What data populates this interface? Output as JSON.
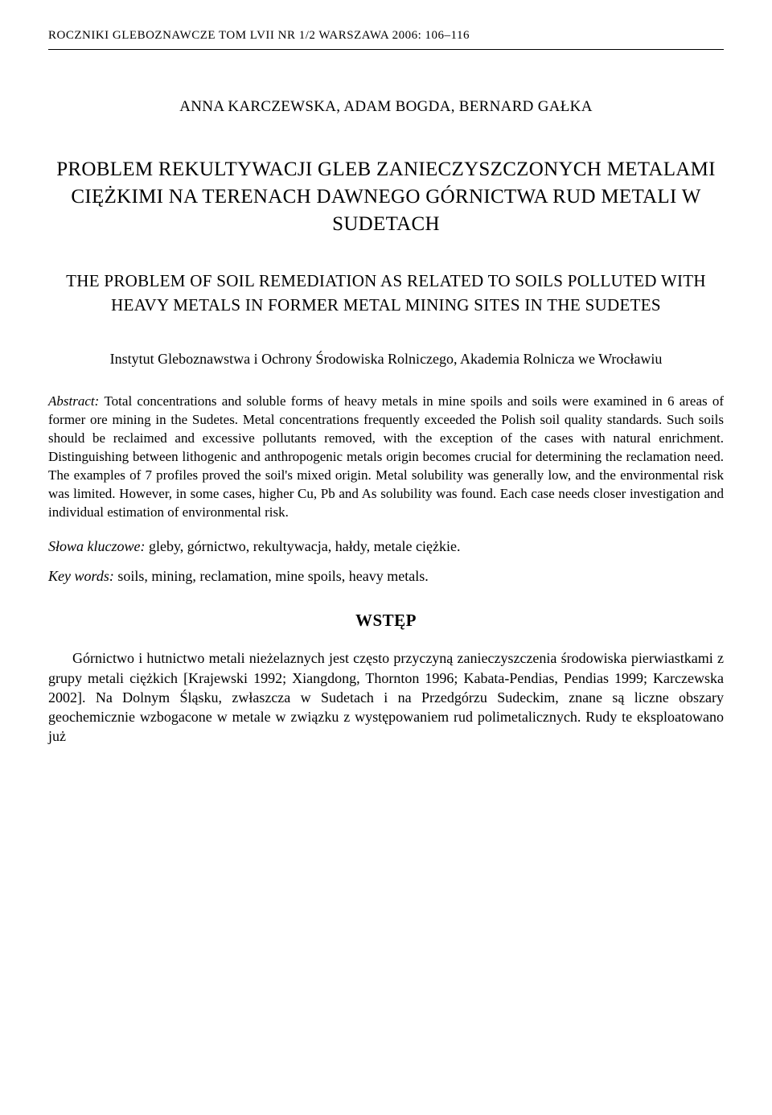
{
  "journal_header": "ROCZNIKI GLEBOZNAWCZE TOM LVII NR 1/2 WARSZAWA 2006: 106–116",
  "authors": "ANNA KARCZEWSKA, ADAM BOGDA, BERNARD GAŁKA",
  "title_main": "PROBLEM REKULTYWACJI GLEB ZANIECZYSZCZONYCH METALAMI CIĘŻKIMI NA TERENACH DAWNEGO GÓRNICTWA RUD METALI W SUDETACH",
  "title_sub": "THE PROBLEM OF SOIL REMEDIATION AS RELATED TO SOILS POLLUTED WITH HEAVY METALS IN FORMER METAL MINING SITES IN THE SUDETES",
  "affiliation": "Instytut Gleboznawstwa i Ochrony Środowiska Rolniczego, Akademia Rolnicza we Wrocławiu",
  "abstract_label": "Abstract: ",
  "abstract_text": "Total concentrations and soluble forms of heavy metals in mine spoils and soils were examined in 6 areas of former ore mining in the Sudetes. Metal concentrations frequently exceeded the Polish soil quality standards. Such soils should be reclaimed and excessive pollutants removed, with the exception of the cases with natural enrichment. Distinguishing between lithogenic and anthropogenic metals origin becomes crucial for determining the reclamation need. The examples of 7 profiles proved the soil's mixed origin. Metal solubility was generally low, and the environmental risk was limited. However, in some cases, higher Cu, Pb and As solubility was found. Each case needs closer investigation and individual estimation of environmental risk.",
  "slowa_label": "Słowa kluczowe: ",
  "slowa_text": "gleby, górnictwo, rekultywacja, hałdy, metale ciężkie.",
  "keywords_label": "Key words: ",
  "keywords_text": "soils, mining, reclamation, mine spoils, heavy metals.",
  "section_heading": "WSTĘP",
  "body_para": "Górnictwo i hutnictwo metali nieżelaznych jest często przyczyną zanieczyszczenia środowiska pierwiastkami z grupy metali ciężkich [Krajewski 1992; Xiangdong, Thornton 1996; Kabata-Pendias, Pendias 1999; Karczewska 2002]. Na Dolnym Śląsku, zwłaszcza w Sudetach i na Przedgórzu Sudeckim, znane są liczne obszary geochemicznie wzbogacone w metale w związku z występowaniem rud polimetalicznych. Rudy te eksploatowano już"
}
